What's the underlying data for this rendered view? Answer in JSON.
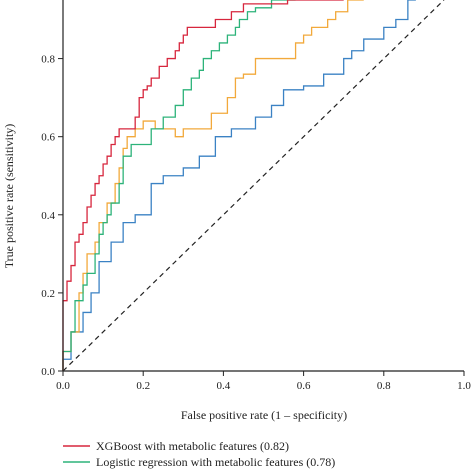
{
  "chart_data": {
    "type": "line",
    "title": "",
    "xlabel": "False positive rate (1 – specificity)",
    "ylabel": "True positive rate (sensitivity)",
    "xlim": [
      0,
      1.0
    ],
    "ylim": [
      0,
      0.95
    ],
    "x_ticks": [
      "0.0",
      "0.2",
      "0.4",
      "0.6",
      "0.8",
      "1.0"
    ],
    "y_ticks": [
      "0.0",
      "0.2",
      "0.4",
      "0.6",
      "0.8"
    ],
    "grid": false,
    "legend_position": "bottom-left",
    "diagonal_reference": true,
    "series": [
      {
        "name": "XGBoost with metabolic features (0.82)",
        "color": "#d7263d",
        "x": [
          0,
          0,
          0.01,
          0.01,
          0.02,
          0.02,
          0.03,
          0.03,
          0.04,
          0.04,
          0.05,
          0.05,
          0.06,
          0.06,
          0.07,
          0.07,
          0.08,
          0.08,
          0.09,
          0.09,
          0.1,
          0.1,
          0.11,
          0.11,
          0.12,
          0.12,
          0.13,
          0.13,
          0.14,
          0.14,
          0.18,
          0.18,
          0.19,
          0.19,
          0.2,
          0.2,
          0.21,
          0.21,
          0.22,
          0.22,
          0.24,
          0.24,
          0.26,
          0.26,
          0.28,
          0.28,
          0.29,
          0.29,
          0.3,
          0.3,
          0.31,
          0.31,
          0.38,
          0.38,
          0.39,
          0.39,
          0.42,
          0.42,
          0.45,
          0.45,
          0.5,
          0.5,
          0.56,
          0.56,
          0.62,
          0.62,
          0.65,
          0.65,
          0.68,
          0.68,
          0.7
        ],
        "y": [
          0,
          0.18,
          0.18,
          0.23,
          0.23,
          0.27,
          0.27,
          0.33,
          0.33,
          0.35,
          0.35,
          0.38,
          0.38,
          0.42,
          0.42,
          0.45,
          0.45,
          0.48,
          0.48,
          0.5,
          0.5,
          0.53,
          0.53,
          0.55,
          0.55,
          0.58,
          0.58,
          0.6,
          0.6,
          0.62,
          0.62,
          0.65,
          0.65,
          0.7,
          0.7,
          0.72,
          0.72,
          0.73,
          0.73,
          0.75,
          0.75,
          0.78,
          0.78,
          0.8,
          0.8,
          0.82,
          0.82,
          0.84,
          0.84,
          0.86,
          0.86,
          0.88,
          0.88,
          0.9,
          0.9,
          0.9,
          0.9,
          0.92,
          0.92,
          0.94,
          0.94,
          0.94,
          0.94,
          0.95,
          0.95,
          0.95,
          0.95,
          0.95,
          0.95,
          0.95,
          0.95
        ]
      },
      {
        "name": "Logistic regression with metabolic features (0.78)",
        "color": "#2db37a",
        "x": [
          0,
          0,
          0.02,
          0.02,
          0.03,
          0.03,
          0.05,
          0.05,
          0.06,
          0.06,
          0.08,
          0.08,
          0.09,
          0.09,
          0.1,
          0.1,
          0.11,
          0.11,
          0.12,
          0.12,
          0.14,
          0.14,
          0.15,
          0.15,
          0.17,
          0.17,
          0.22,
          0.22,
          0.25,
          0.25,
          0.28,
          0.28,
          0.3,
          0.3,
          0.32,
          0.32,
          0.34,
          0.34,
          0.35,
          0.35,
          0.37,
          0.37,
          0.39,
          0.39,
          0.41,
          0.41,
          0.43,
          0.43,
          0.44,
          0.44,
          0.46,
          0.46,
          0.48,
          0.48,
          0.52,
          0.52,
          0.58
        ],
        "y": [
          0,
          0.05,
          0.05,
          0.1,
          0.1,
          0.18,
          0.18,
          0.22,
          0.22,
          0.25,
          0.25,
          0.3,
          0.3,
          0.35,
          0.35,
          0.38,
          0.38,
          0.4,
          0.4,
          0.43,
          0.43,
          0.48,
          0.48,
          0.55,
          0.55,
          0.58,
          0.58,
          0.62,
          0.62,
          0.65,
          0.65,
          0.68,
          0.68,
          0.72,
          0.72,
          0.75,
          0.75,
          0.77,
          0.77,
          0.8,
          0.8,
          0.82,
          0.82,
          0.84,
          0.84,
          0.86,
          0.86,
          0.88,
          0.88,
          0.9,
          0.9,
          0.92,
          0.92,
          0.93,
          0.93,
          0.95,
          0.95
        ]
      },
      {
        "name": "",
        "color": "#f2a93b",
        "x": [
          0,
          0,
          0.02,
          0.02,
          0.04,
          0.04,
          0.05,
          0.05,
          0.06,
          0.06,
          0.08,
          0.08,
          0.09,
          0.09,
          0.11,
          0.11,
          0.13,
          0.13,
          0.14,
          0.14,
          0.15,
          0.15,
          0.16,
          0.16,
          0.18,
          0.18,
          0.2,
          0.2,
          0.23,
          0.23,
          0.28,
          0.28,
          0.3,
          0.3,
          0.37,
          0.37,
          0.41,
          0.41,
          0.43,
          0.43,
          0.45,
          0.45,
          0.48,
          0.48,
          0.51,
          0.51,
          0.58,
          0.58,
          0.6,
          0.6,
          0.62,
          0.62,
          0.66,
          0.66,
          0.68,
          0.68,
          0.71,
          0.71,
          0.75
        ],
        "y": [
          0,
          0.05,
          0.05,
          0.1,
          0.1,
          0.2,
          0.2,
          0.25,
          0.25,
          0.3,
          0.3,
          0.33,
          0.33,
          0.38,
          0.38,
          0.43,
          0.43,
          0.48,
          0.48,
          0.52,
          0.52,
          0.57,
          0.57,
          0.6,
          0.6,
          0.62,
          0.62,
          0.64,
          0.64,
          0.62,
          0.62,
          0.6,
          0.6,
          0.62,
          0.62,
          0.66,
          0.66,
          0.7,
          0.7,
          0.75,
          0.75,
          0.76,
          0.76,
          0.8,
          0.8,
          0.8,
          0.8,
          0.84,
          0.84,
          0.86,
          0.86,
          0.88,
          0.88,
          0.9,
          0.9,
          0.92,
          0.92,
          0.95,
          0.95
        ]
      },
      {
        "name": "",
        "color": "#3b82c4",
        "x": [
          0,
          0,
          0.02,
          0.02,
          0.05,
          0.05,
          0.07,
          0.07,
          0.09,
          0.09,
          0.12,
          0.12,
          0.15,
          0.15,
          0.18,
          0.18,
          0.22,
          0.22,
          0.25,
          0.25,
          0.3,
          0.3,
          0.34,
          0.34,
          0.38,
          0.38,
          0.42,
          0.42,
          0.48,
          0.48,
          0.52,
          0.52,
          0.55,
          0.55,
          0.6,
          0.6,
          0.65,
          0.65,
          0.7,
          0.7,
          0.72,
          0.72,
          0.75,
          0.75,
          0.8,
          0.8,
          0.83,
          0.83,
          0.86,
          0.86,
          0.88
        ],
        "y": [
          0,
          0.03,
          0.03,
          0.1,
          0.1,
          0.15,
          0.15,
          0.2,
          0.2,
          0.28,
          0.28,
          0.33,
          0.33,
          0.38,
          0.38,
          0.4,
          0.4,
          0.48,
          0.48,
          0.5,
          0.5,
          0.52,
          0.52,
          0.55,
          0.55,
          0.6,
          0.6,
          0.62,
          0.62,
          0.65,
          0.65,
          0.68,
          0.68,
          0.72,
          0.72,
          0.73,
          0.73,
          0.76,
          0.76,
          0.8,
          0.8,
          0.82,
          0.82,
          0.85,
          0.85,
          0.88,
          0.88,
          0.9,
          0.9,
          0.95,
          0.95
        ]
      }
    ]
  }
}
